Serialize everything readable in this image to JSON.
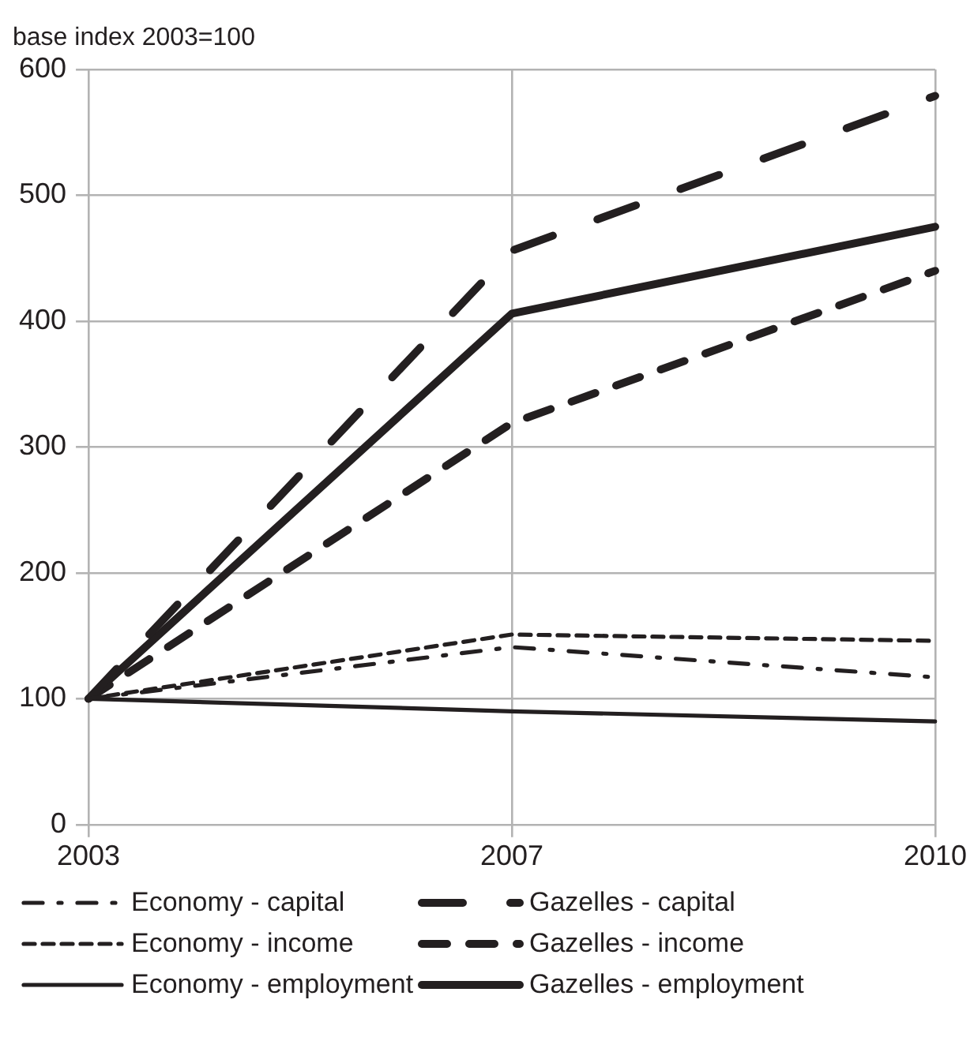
{
  "chart_data": {
    "type": "line",
    "ylabel": "base index 2003=100",
    "categories": [
      "2003",
      "2007",
      "2010"
    ],
    "series": [
      {
        "name": "Economy - capital",
        "color": "#231f20",
        "line_style": "dashdot",
        "values": [
          100,
          141,
          117
        ]
      },
      {
        "name": "Gazelles - capital",
        "color": "#231f20",
        "line_style": "dashed",
        "values": [
          100,
          456,
          579
        ]
      },
      {
        "name": "Economy - income",
        "color": "#231f20",
        "line_style": "dashed",
        "values": [
          100,
          151,
          146
        ]
      },
      {
        "name": "Gazelles - income",
        "color": "#231f20",
        "line_style": "dashed",
        "values": [
          100,
          319,
          440
        ]
      },
      {
        "name": "Economy - employment",
        "color": "#231f20",
        "line_style": "solid",
        "values": [
          100,
          90,
          82
        ]
      },
      {
        "name": "Gazelles - employment",
        "color": "#231f20",
        "line_style": "solid",
        "values": [
          100,
          406,
          475
        ]
      }
    ],
    "ylim": [
      0,
      600
    ],
    "yticks": [
      0,
      100,
      200,
      300,
      400,
      500,
      600
    ],
    "grid": true,
    "legend": "bottom",
    "marker": "none"
  }
}
